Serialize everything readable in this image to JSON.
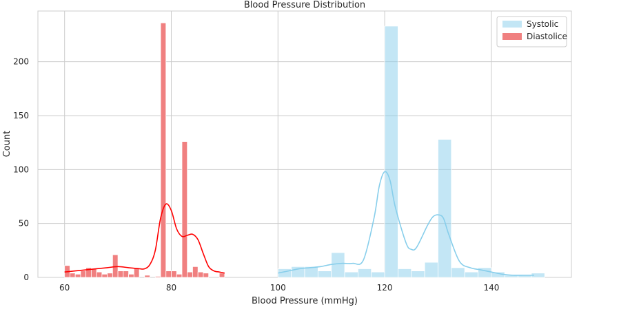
{
  "chart_data": {
    "type": "histogram",
    "title": "Blood Pressure Distribution",
    "xlabel": "Blood Pressure (mmHg)",
    "ylabel": "Count",
    "xlim": [
      55,
      155
    ],
    "ylim": [
      0,
      247
    ],
    "x_ticks": [
      60,
      80,
      100,
      120,
      140
    ],
    "y_ticks": [
      0,
      50,
      100,
      150,
      200
    ],
    "grid": true,
    "legend_position": "top-right",
    "series": [
      {
        "name": "Systolic",
        "color": "#87CEEB",
        "kde_color": "#87CEEB",
        "bin_width": 2.5,
        "bins": [
          [
            100,
            8
          ],
          [
            102.5,
            10
          ],
          [
            105,
            10
          ],
          [
            107.5,
            6
          ],
          [
            110,
            23
          ],
          [
            112.5,
            5
          ],
          [
            115,
            8
          ],
          [
            117.5,
            5
          ],
          [
            120,
            233
          ],
          [
            122.5,
            8
          ],
          [
            125,
            6
          ],
          [
            127.5,
            14
          ],
          [
            130,
            128
          ],
          [
            132.5,
            9
          ],
          [
            135,
            5
          ],
          [
            137.5,
            9
          ],
          [
            140,
            5
          ],
          [
            142.5,
            2
          ],
          [
            145,
            2
          ],
          [
            147.5,
            4
          ]
        ],
        "kde": [
          [
            100,
            4
          ],
          [
            102,
            6
          ],
          [
            104,
            8
          ],
          [
            106,
            9
          ],
          [
            108,
            10
          ],
          [
            110,
            12
          ],
          [
            112,
            13
          ],
          [
            114,
            13
          ],
          [
            116,
            16
          ],
          [
            118,
            55
          ],
          [
            119,
            85
          ],
          [
            120,
            98
          ],
          [
            121,
            90
          ],
          [
            122,
            65
          ],
          [
            124,
            32
          ],
          [
            125,
            26
          ],
          [
            126,
            28
          ],
          [
            128,
            48
          ],
          [
            129,
            56
          ],
          [
            130,
            58
          ],
          [
            131,
            55
          ],
          [
            132,
            40
          ],
          [
            134,
            15
          ],
          [
            136,
            9
          ],
          [
            138,
            7
          ],
          [
            140,
            5
          ],
          [
            142,
            3
          ],
          [
            144,
            2
          ],
          [
            146,
            2
          ],
          [
            148,
            2
          ]
        ]
      },
      {
        "name": "Diastolice",
        "color": "#F08080",
        "kde_color": "#FF0000",
        "bin_width": 1,
        "bins": [
          [
            60,
            11
          ],
          [
            61,
            4
          ],
          [
            62,
            3
          ],
          [
            63,
            6
          ],
          [
            64,
            9
          ],
          [
            65,
            8
          ],
          [
            66,
            5
          ],
          [
            67,
            3
          ],
          [
            68,
            4
          ],
          [
            69,
            21
          ],
          [
            70,
            6
          ],
          [
            71,
            6
          ],
          [
            72,
            3
          ],
          [
            73,
            9
          ],
          [
            74,
            0
          ],
          [
            75,
            2
          ],
          [
            76,
            0
          ],
          [
            77,
            1
          ],
          [
            78,
            236
          ],
          [
            79,
            6
          ],
          [
            80,
            6
          ],
          [
            81,
            3
          ],
          [
            82,
            126
          ],
          [
            83,
            5
          ],
          [
            84,
            10
          ],
          [
            85,
            5
          ],
          [
            86,
            4
          ],
          [
            87,
            0
          ],
          [
            88,
            0
          ],
          [
            89,
            4
          ]
        ],
        "kde": [
          [
            60,
            5
          ],
          [
            62,
            6
          ],
          [
            64,
            7
          ],
          [
            66,
            8
          ],
          [
            68,
            9
          ],
          [
            70,
            10
          ],
          [
            72,
            9
          ],
          [
            74,
            8
          ],
          [
            75,
            8
          ],
          [
            76,
            12
          ],
          [
            77,
            25
          ],
          [
            78,
            55
          ],
          [
            79,
            68
          ],
          [
            80,
            62
          ],
          [
            81,
            45
          ],
          [
            82,
            38
          ],
          [
            83,
            39
          ],
          [
            84,
            40
          ],
          [
            85,
            35
          ],
          [
            86,
            22
          ],
          [
            87,
            10
          ],
          [
            88,
            6
          ],
          [
            89,
            5
          ],
          [
            90,
            4
          ]
        ]
      }
    ]
  }
}
